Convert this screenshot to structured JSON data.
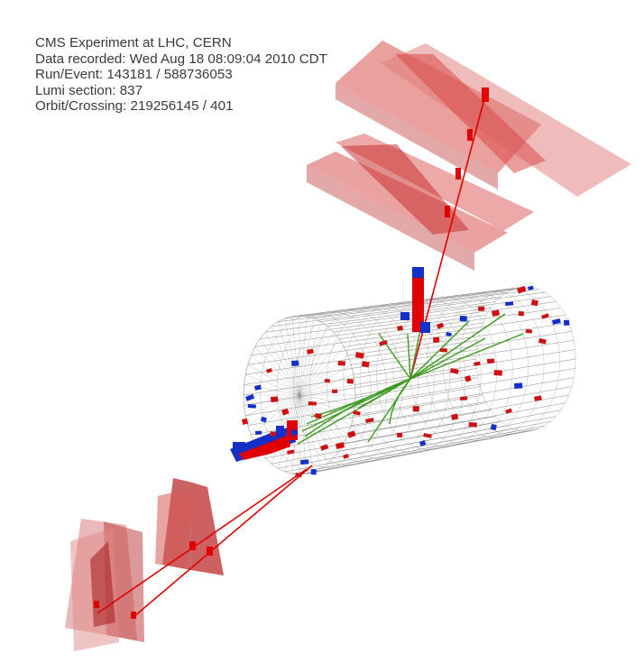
{
  "event_info": {
    "experiment": "CMS Experiment at LHC, CERN",
    "recorded": "Data recorded: Wed Aug 18 08:09:04 2010 CDT",
    "run_event": "Run/Event: 143181 / 588736053",
    "lumi": "Lumi section: 837",
    "orbit": "Orbit/Crossing: 219256145 / 401"
  },
  "colors": {
    "muon_track": "#e00000",
    "track": "#3c9a1e",
    "ecal_deposit": "#d01010",
    "hcal_deposit": "#1530c8",
    "muon_chamber": "#d9534f",
    "wireframe": "#8a8a8a"
  }
}
